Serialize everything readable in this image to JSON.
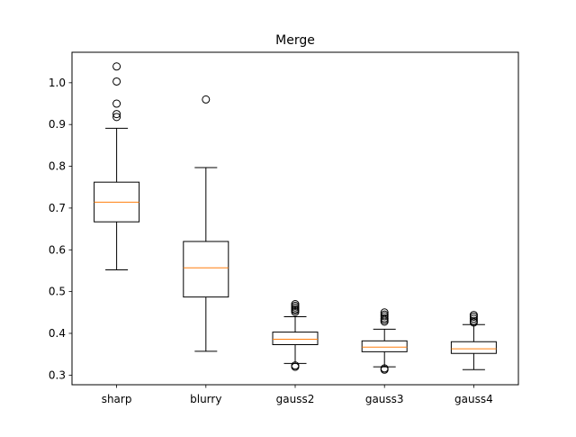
{
  "chart_data": {
    "type": "box",
    "title": "Merge",
    "xlabel": "",
    "ylabel": "",
    "ylim": [
      0.277,
      1.073
    ],
    "yticks": [
      0.3,
      0.4,
      0.5,
      0.6,
      0.7,
      0.8,
      0.9,
      1.0
    ],
    "ytick_labels": [
      "0.3",
      "0.4",
      "0.5",
      "0.6",
      "0.7",
      "0.8",
      "0.9",
      "1.0"
    ],
    "grid": false,
    "boxes": [
      {
        "label": "sharp",
        "whisker_low": 0.552,
        "q1": 0.667,
        "median": 0.714,
        "q3": 0.762,
        "whisker_high": 0.891,
        "fliers": [
          1.039,
          1.003,
          0.95,
          0.925,
          0.918
        ]
      },
      {
        "label": "blurry",
        "whisker_low": 0.357,
        "q1": 0.487,
        "median": 0.557,
        "q3": 0.62,
        "whisker_high": 0.797,
        "fliers": [
          0.96
        ]
      },
      {
        "label": "gauss2",
        "whisker_low": 0.328,
        "q1": 0.373,
        "median": 0.386,
        "q3": 0.403,
        "whisker_high": 0.44,
        "fliers": [
          0.47,
          0.466,
          0.462,
          0.458,
          0.455,
          0.451,
          0.323,
          0.32
        ]
      },
      {
        "label": "gauss3",
        "whisker_low": 0.32,
        "q1": 0.356,
        "median": 0.367,
        "q3": 0.382,
        "whisker_high": 0.41,
        "fliers": [
          0.45,
          0.445,
          0.441,
          0.436,
          0.432,
          0.428,
          0.316,
          0.313
        ]
      },
      {
        "label": "gauss4",
        "whisker_low": 0.313,
        "q1": 0.352,
        "median": 0.363,
        "q3": 0.38,
        "whisker_high": 0.421,
        "fliers": [
          0.444,
          0.44,
          0.435,
          0.43,
          0.426
        ]
      }
    ],
    "colors": {
      "box": "#000000",
      "median": "#ff7f0e",
      "flier_edge": "#000000"
    }
  }
}
